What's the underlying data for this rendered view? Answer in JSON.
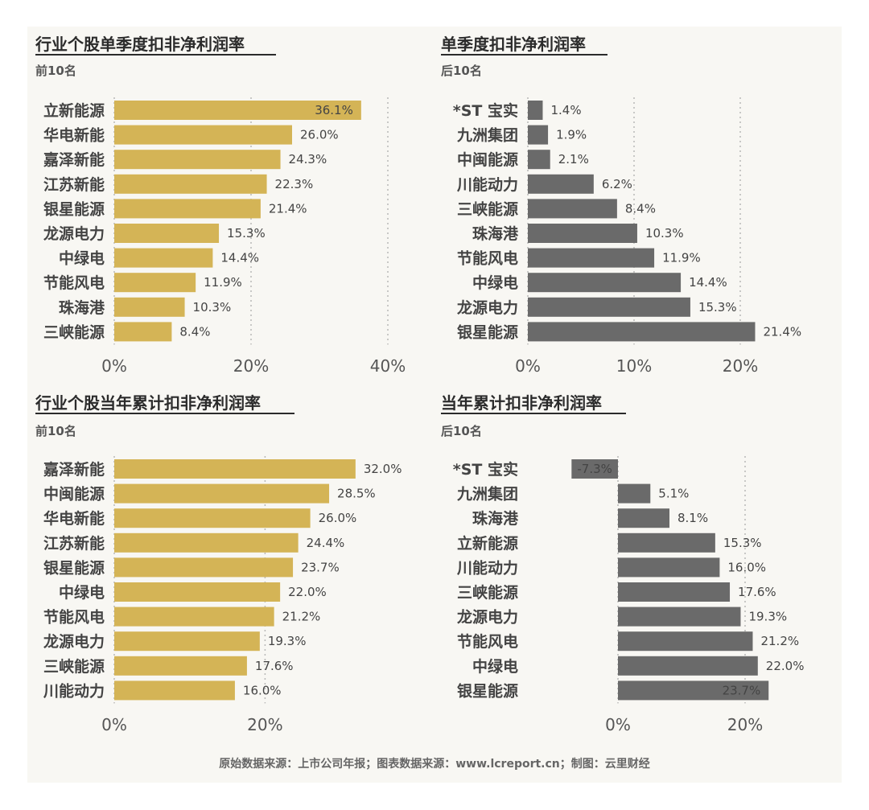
{
  "footer": "原始数据来源：上市公司年报；图表数据来源：www.lcreport.cn；制图：云里财经",
  "colors": {
    "gold": "#d4b456",
    "gray": "#6a6a6a"
  },
  "chart_data": [
    {
      "type": "bar",
      "title": "行业个股单季度扣非净利润率",
      "subtitle": "前10名",
      "categories": [
        "立新能源",
        "华电新能",
        "嘉泽新能",
        "江苏新能",
        "银星能源",
        "龙源电力",
        "中绿电",
        "节能风电",
        "珠海港",
        "三峡能源"
      ],
      "values": [
        36.1,
        26.0,
        24.3,
        22.3,
        21.4,
        15.3,
        14.4,
        11.9,
        10.3,
        8.4
      ],
      "value_labels": [
        "36.1%",
        "26.0%",
        "24.3%",
        "22.3%",
        "21.4%",
        "15.3%",
        "14.4%",
        "11.9%",
        "10.3%",
        "8.4%"
      ],
      "xlim": [
        0,
        40
      ],
      "ticks": [
        0,
        20,
        40
      ],
      "tick_labels": [
        "0%",
        "20%",
        "40%"
      ],
      "color": "gold",
      "grid": true
    },
    {
      "type": "bar",
      "title": "单季度扣非净利润率",
      "subtitle": "后10名",
      "categories": [
        "*ST 宝实",
        "九洲集团",
        "中闽能源",
        "川能动力",
        "三峡能源",
        "珠海港",
        "节能风电",
        "中绿电",
        "龙源电力",
        "银星能源"
      ],
      "values": [
        1.4,
        1.9,
        2.1,
        6.2,
        8.4,
        10.3,
        11.9,
        14.4,
        15.3,
        21.4
      ],
      "value_labels": [
        "1.4%",
        "1.9%",
        "2.1%",
        "6.2%",
        "8.4%",
        "10.3%",
        "11.9%",
        "14.4%",
        "15.3%",
        "21.4%"
      ],
      "xlim": [
        0,
        20
      ],
      "ticks": [
        0,
        10,
        20
      ],
      "tick_labels": [
        "0%",
        "10%",
        "20%"
      ],
      "color": "gray",
      "grid": true
    },
    {
      "type": "bar",
      "title": "行业个股当年累计扣非净利润率",
      "subtitle": "前10名",
      "categories": [
        "嘉泽新能",
        "中闽能源",
        "华电新能",
        "江苏新能",
        "银星能源",
        "中绿电",
        "节能风电",
        "龙源电力",
        "三峡能源",
        "川能动力"
      ],
      "values": [
        32.0,
        28.5,
        26.0,
        24.4,
        23.7,
        22.0,
        21.2,
        19.3,
        17.6,
        16.0
      ],
      "value_labels": [
        "32.0%",
        "28.5%",
        "26.0%",
        "24.4%",
        "23.7%",
        "22.0%",
        "21.2%",
        "19.3%",
        "17.6%",
        "16.0%"
      ],
      "xlim": [
        0,
        20
      ],
      "ticks": [
        0,
        20
      ],
      "tick_labels": [
        "0%",
        "20%"
      ],
      "color": "gold",
      "grid": true
    },
    {
      "type": "bar",
      "title": "当年累计扣非净利润率",
      "subtitle": "后10名",
      "categories": [
        "*ST 宝实",
        "九洲集团",
        "珠海港",
        "立新能源",
        "川能动力",
        "三峡能源",
        "龙源电力",
        "节能风电",
        "中绿电",
        "银星能源"
      ],
      "values": [
        -7.3,
        5.1,
        8.1,
        15.3,
        16.0,
        17.6,
        19.3,
        21.2,
        22.0,
        23.7
      ],
      "value_labels": [
        "-7.3%",
        "5.1%",
        "8.1%",
        "15.3%",
        "16.0%",
        "17.6%",
        "19.3%",
        "21.2%",
        "22.0%",
        "23.7%"
      ],
      "xlim": [
        0,
        20
      ],
      "ticks": [
        0,
        20
      ],
      "tick_labels": [
        "0%",
        "20%"
      ],
      "color": "gray",
      "grid": true
    }
  ]
}
